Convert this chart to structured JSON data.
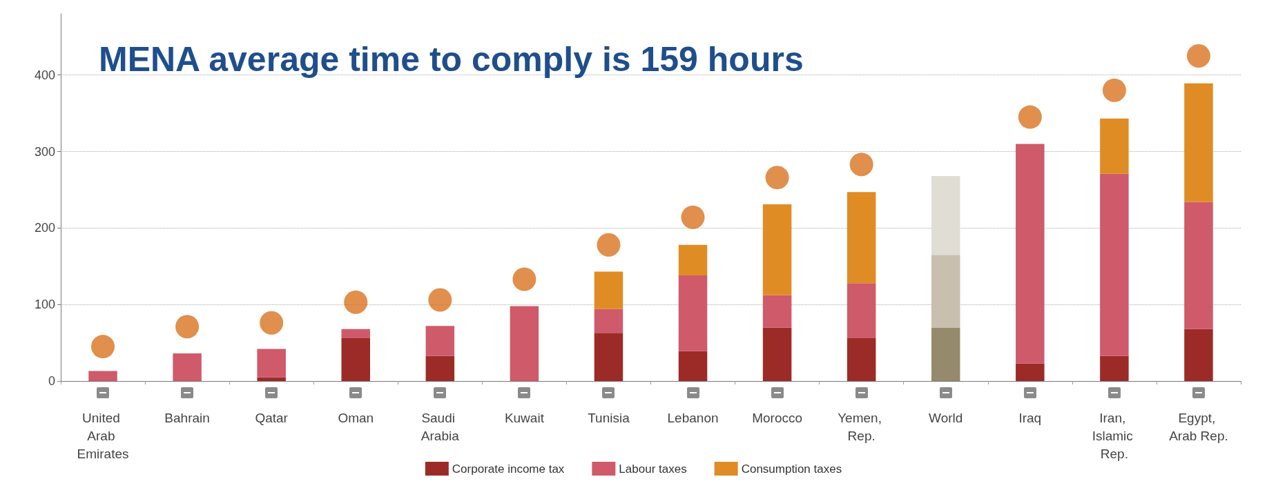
{
  "chart_data": {
    "type": "bar",
    "title": "MENA average time to comply is 159 hours",
    "stacked": true,
    "categories": [
      "United Arab Emirates",
      "Bahrain",
      "Qatar",
      "Oman",
      "Saudi Arabia",
      "Kuwait",
      "Tunisia",
      "Lebanon",
      "Morocco",
      "Yemen, Rep.",
      "World",
      "Iraq",
      "Iran, Islamic Rep.",
      "Egypt, Arab Rep."
    ],
    "series": [
      {
        "name": "Corporate income tax",
        "color": "#9c2b27",
        "values": [
          0,
          0,
          5,
          56,
          33,
          0,
          63,
          39,
          70,
          56,
          70,
          23,
          33,
          68
        ],
        "colors": [
          "#9c2b27",
          "#9c2b27",
          "#9c2b27",
          "#9c2b27",
          "#9c2b27",
          "#9c2b27",
          "#9c2b27",
          "#9c2b27",
          "#9c2b27",
          "#9c2b27",
          "#968a6c",
          "#9c2b27",
          "#9c2b27",
          "#9c2b27"
        ]
      },
      {
        "name": "Labour taxes",
        "color": "#cf5a6a",
        "values": [
          13,
          36,
          37,
          12,
          39,
          98,
          31,
          99,
          42,
          72,
          95,
          287,
          238,
          166
        ],
        "colors": [
          "#cf5a6a",
          "#cf5a6a",
          "#cf5a6a",
          "#cf5a6a",
          "#cf5a6a",
          "#cf5a6a",
          "#cf5a6a",
          "#cf5a6a",
          "#cf5a6a",
          "#cf5a6a",
          "#c8bfae",
          "#cf5a6a",
          "#cf5a6a",
          "#cf5a6a"
        ]
      },
      {
        "name": "Consumption taxes",
        "color": "#e08c25",
        "values": [
          0,
          0,
          0,
          0,
          0,
          0,
          49,
          40,
          119,
          119,
          103,
          0,
          72,
          155
        ],
        "colors": [
          "#e08c25",
          "#e08c25",
          "#e08c25",
          "#e08c25",
          "#e08c25",
          "#e08c25",
          "#e08c25",
          "#e08c25",
          "#e08c25",
          "#e08c25",
          "#e0ddd5",
          "#e08c25",
          "#e08c25",
          "#e08c25"
        ]
      },
      {
        "type": "scatter",
        "color": "#d9731f",
        "x": [
          "United Arab Emirates",
          "Bahrain",
          "Qatar",
          "Oman",
          "Saudi Arabia",
          "Kuwait",
          "Tunisia",
          "Lebanon",
          "Morocco",
          "Yemen, Rep.",
          "World",
          "Iraq",
          "Iran, Islamic Rep.",
          "Egypt, Arab Rep."
        ],
        "values": [
          45,
          71,
          76,
          103,
          106,
          133,
          178,
          214,
          266,
          283,
          null,
          345,
          380,
          425
        ]
      }
    ],
    "ylim": [
      0,
      480
    ],
    "yticks": [
      0,
      100,
      200,
      300,
      400
    ],
    "grid": "y",
    "legend": "bottom",
    "marker": "circle"
  }
}
